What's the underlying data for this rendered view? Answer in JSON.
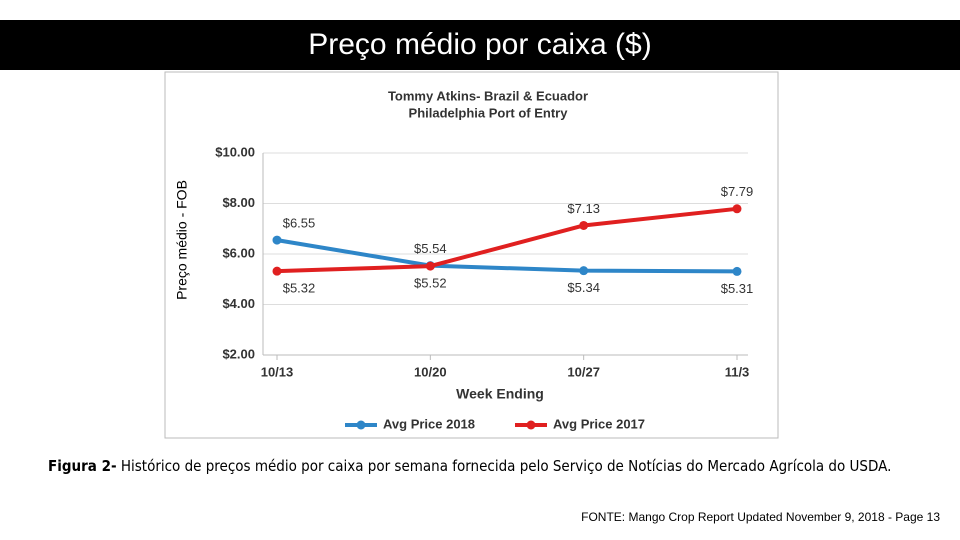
{
  "slide_title": "Preço médio por caixa ($)",
  "side_label": "Preço médio - FOB",
  "chart_data": {
    "type": "line",
    "title": "Tommy Atkins- Brazil & Ecuador",
    "subtitle": "Philadelphia Port of Entry",
    "x_label": "Week Ending",
    "categories": [
      "10/13",
      "10/20",
      "10/27",
      "11/3"
    ],
    "series": [
      {
        "name": "Avg Price 2018",
        "color": "#2e86c8",
        "values": [
          6.55,
          5.54,
          5.34,
          5.31
        ],
        "value_labels": [
          "$6.55",
          "$5.54",
          "$5.34",
          "$5.31"
        ]
      },
      {
        "name": "Avg Price 2017",
        "color": "#e02020",
        "values": [
          5.32,
          5.52,
          7.13,
          7.79
        ],
        "value_labels": [
          "$5.32",
          "$5.52",
          "$7.13",
          "$7.79"
        ]
      }
    ],
    "ylim": [
      2,
      10
    ],
    "yticks": [
      {
        "value": 2,
        "label": "$2.00"
      },
      {
        "value": 4,
        "label": "$4.00"
      },
      {
        "value": 6,
        "label": "$6.00"
      },
      {
        "value": 8,
        "label": "$8.00"
      },
      {
        "value": 10,
        "label": "$10.00"
      }
    ],
    "grid": true,
    "legend": "bottom"
  },
  "caption": {
    "label": "Figura 2-",
    "text": " Histórico de preços médio por caixa por semana fornecida pelo Serviço de Notícias do Mercado Agrícola do USDA."
  },
  "source": "FONTE: Mango Crop Report Updated November 9, 2018 - Page 13"
}
